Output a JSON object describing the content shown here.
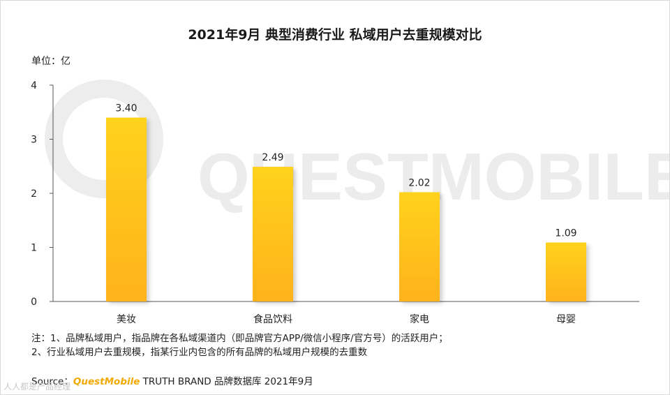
{
  "title": "2021年9月 典型消费行业 私域用户去重规模对比",
  "unit_label": "单位：亿",
  "watermark": "QUESTMOBILE",
  "chart_data": {
    "type": "bar",
    "title": "2021年9月 典型消费行业 私域用户去重规模对比",
    "ylabel": "单位：亿",
    "xlabel": "",
    "categories": [
      "美妆",
      "食品饮料",
      "家电",
      "母婴"
    ],
    "values": [
      3.4,
      2.49,
      2.02,
      1.09
    ],
    "value_labels": [
      "3.40",
      "2.49",
      "2.02",
      "1.09"
    ],
    "ylim": [
      0,
      4
    ],
    "yticks": [
      "0",
      "1",
      "2",
      "3",
      "4"
    ],
    "grid": false,
    "bar_color_top": "#FFD21A",
    "bar_color_bottom": "#FFB21E"
  },
  "notes": {
    "line1": "注：1、品牌私域用户，指品牌在各私域渠道内（即品牌官方APP/微信小程序/官方号）的活跃用户；",
    "line2": "2、行业私域用户去重规模，指某行业内包含的所有品牌的私域用户规模的去重数"
  },
  "source": {
    "prefix": "Source：",
    "brand": "QuestMobile",
    "rest": " TRUTH BRAND 品牌数据库 2021年9月"
  },
  "corner_mark": "人人都是产品经理"
}
